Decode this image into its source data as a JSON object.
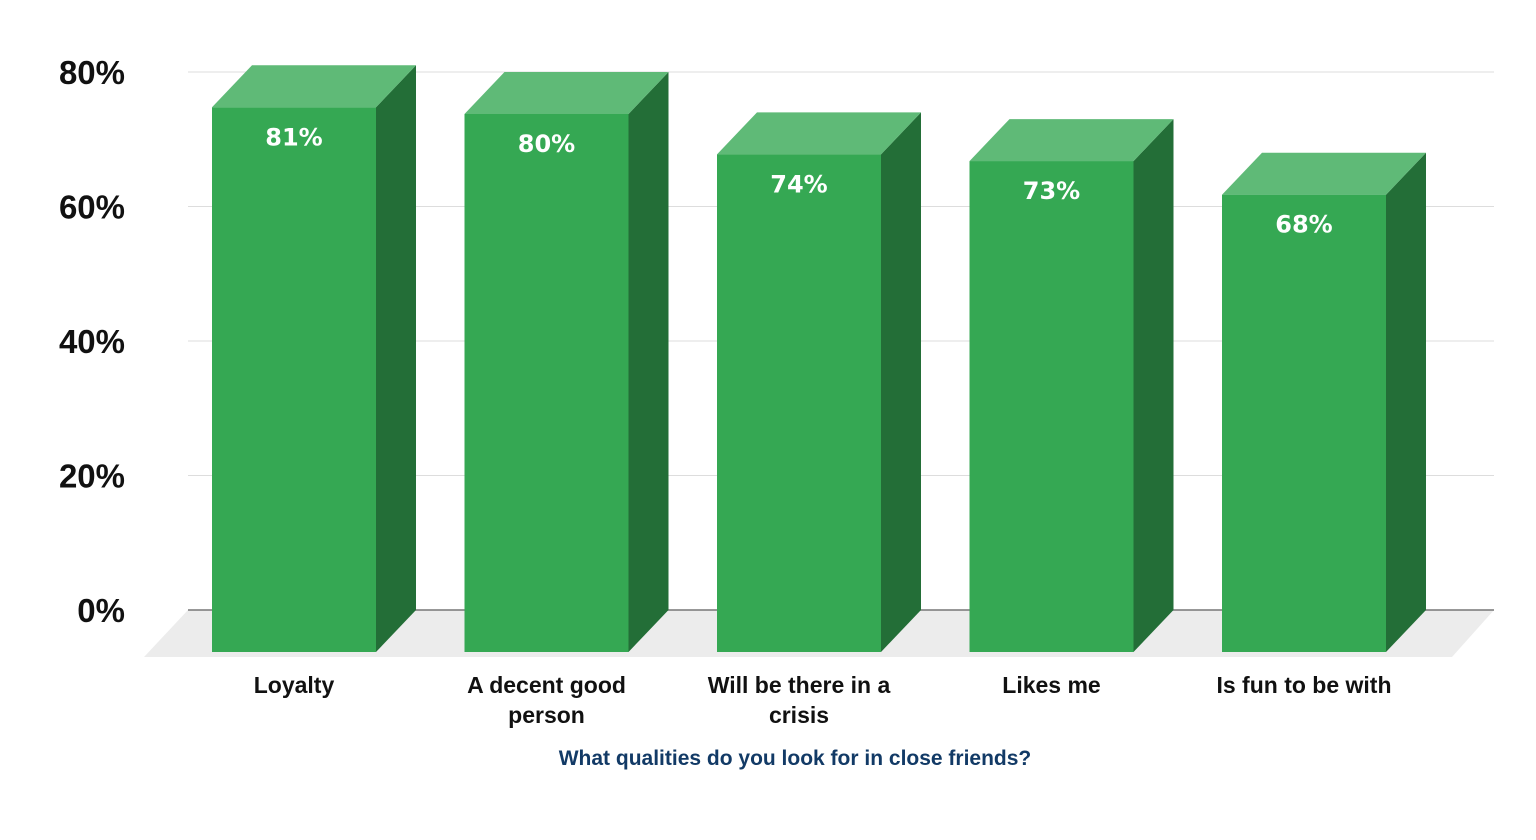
{
  "chart_data": {
    "type": "bar",
    "style": "3d-column",
    "categories": [
      [
        "Loyalty"
      ],
      [
        "A decent good",
        "person"
      ],
      [
        "Will be there in a",
        "crisis"
      ],
      [
        "Likes me"
      ],
      [
        "Is fun to be with"
      ]
    ],
    "values": [
      81,
      80,
      74,
      73,
      68
    ],
    "data_labels": [
      "81%",
      "80%",
      "74%",
      "73%",
      "68%"
    ],
    "title": "",
    "xlabel": "What qualities do you look for in close friends?",
    "ylabel": "",
    "ylim": [
      0,
      80
    ],
    "yticks": [
      0,
      20,
      40,
      60,
      80
    ],
    "ytick_labels": [
      "0%",
      "20%",
      "40%",
      "60%",
      "80%"
    ],
    "grid": true,
    "legend": "none",
    "colors": {
      "bar_front": "#35a853",
      "bar_top": "#5fba77",
      "bar_side": "#236e37",
      "floor": "#ececec",
      "grid": "#dddddd",
      "axis": "#777777",
      "xlabel": "#123a66"
    }
  }
}
